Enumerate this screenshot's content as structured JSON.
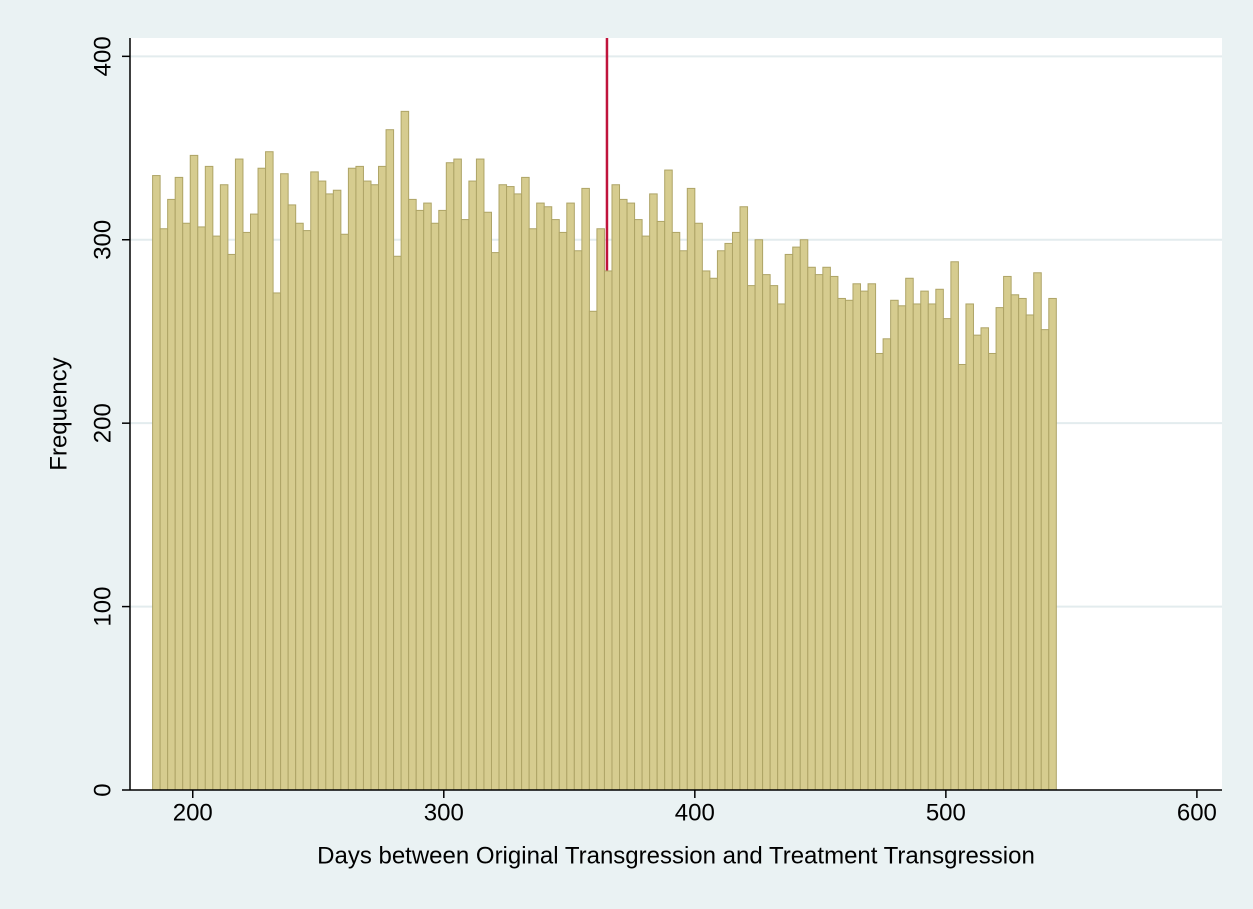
{
  "chart_data": {
    "type": "histogram",
    "x_label": "Days between Original Transgression and Treatment Transgression",
    "y_label": "Frequency",
    "bins": [
      184,
      187,
      190,
      193,
      196,
      199,
      202,
      205,
      208,
      211,
      214,
      217,
      220,
      223,
      226,
      229,
      232,
      235,
      238,
      241,
      244,
      247,
      250,
      253,
      256,
      259,
      262,
      265,
      268,
      271,
      274,
      277,
      280,
      283,
      286,
      289,
      292,
      295,
      298,
      301,
      304,
      307,
      310,
      313,
      316,
      319,
      322,
      325,
      328,
      331,
      334,
      337,
      340,
      343,
      346,
      349,
      352,
      355,
      358,
      361,
      364,
      367,
      370,
      373,
      376,
      379,
      382,
      385,
      388,
      391,
      394,
      397,
      400,
      403,
      406,
      409,
      412,
      415,
      418,
      421,
      424,
      427,
      430,
      433,
      436,
      439,
      442,
      445,
      448,
      451,
      454,
      457,
      460,
      463,
      466,
      469,
      472,
      475,
      478,
      481,
      484,
      487,
      490,
      493,
      496,
      499,
      502,
      505,
      508,
      511,
      514,
      517,
      520,
      523,
      526,
      529,
      532,
      535,
      538,
      541,
      544
    ],
    "values": [
      335,
      306,
      322,
      334,
      309,
      346,
      307,
      340,
      302,
      330,
      292,
      344,
      304,
      314,
      339,
      348,
      271,
      336,
      319,
      309,
      305,
      337,
      332,
      325,
      327,
      303,
      339,
      340,
      332,
      330,
      340,
      360,
      291,
      370,
      322,
      316,
      320,
      309,
      316,
      342,
      344,
      311,
      332,
      344,
      315,
      293,
      330,
      329,
      325,
      334,
      306,
      320,
      318,
      311,
      304,
      320,
      294,
      328,
      261,
      306,
      283,
      330,
      322,
      320,
      311,
      302,
      325,
      310,
      338,
      304,
      294,
      328,
      309,
      283,
      279,
      294,
      298,
      304,
      318,
      275,
      300,
      281,
      275,
      265,
      292,
      296,
      300,
      285,
      281,
      285,
      280,
      268,
      267,
      276,
      272,
      276,
      238,
      246,
      267,
      264,
      279,
      265,
      272,
      265,
      273,
      257,
      288,
      232,
      265,
      248,
      252,
      238,
      263,
      280,
      270,
      268,
      259,
      282,
      251,
      268
    ],
    "color": "#d6cc8f",
    "edge_color": "#aea466",
    "xline": 365,
    "xline_color": "#c0143c",
    "xlim": [
      175,
      610
    ],
    "xticks": [
      200,
      300,
      400,
      500,
      600
    ],
    "ylim": [
      0,
      410
    ],
    "yticks": [
      0,
      100,
      200,
      300,
      400
    ],
    "grid": true
  }
}
